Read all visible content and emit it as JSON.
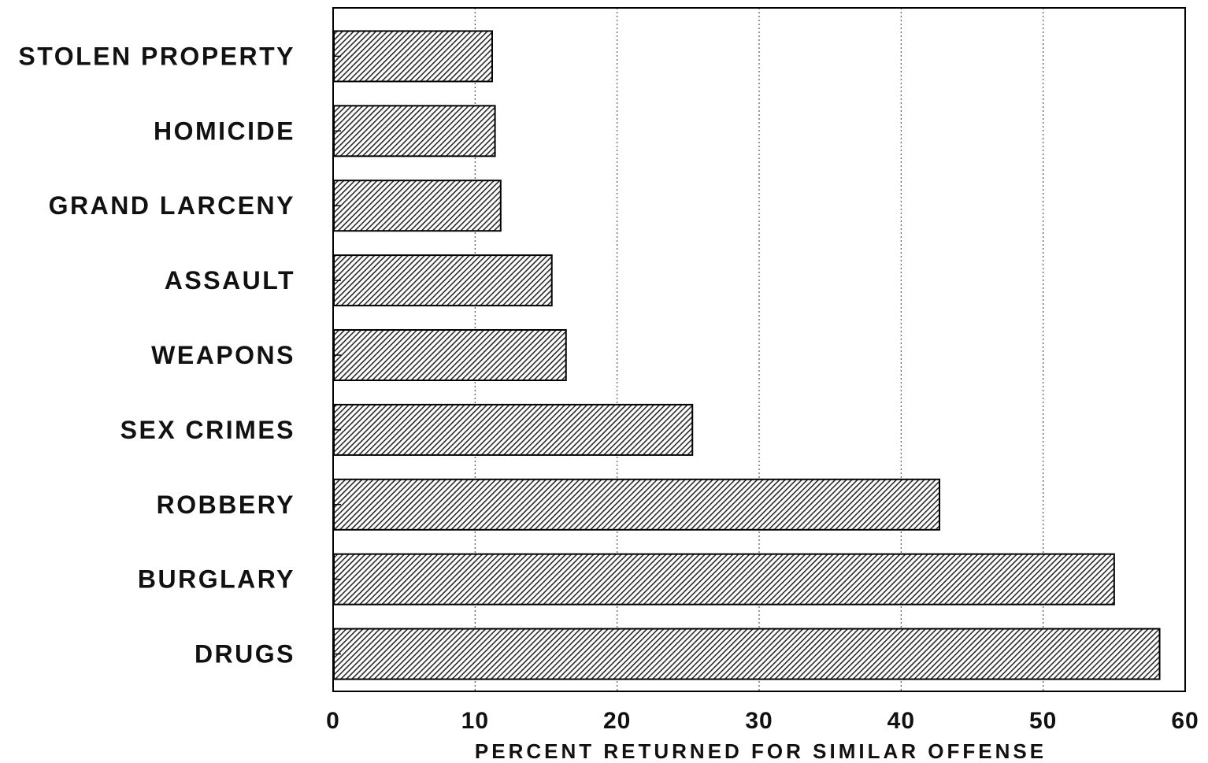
{
  "chart_data": {
    "type": "bar",
    "orientation": "horizontal",
    "categories": [
      "STOLEN PROPERTY",
      "HOMICIDE",
      "GRAND LARCENY",
      "ASSAULT",
      "WEAPONS",
      "SEX CRIMES",
      "ROBBERY",
      "BURGLARY",
      "DRUGS"
    ],
    "values": [
      11.2,
      11.4,
      11.8,
      15.4,
      16.4,
      25.3,
      42.7,
      55.0,
      58.2
    ],
    "title": "",
    "xlabel": "PERCENT RETURNED FOR SIMILAR OFFENSE",
    "ylabel": "",
    "xlim": [
      0,
      60
    ],
    "xticks": [
      0,
      10,
      20,
      30,
      40,
      50,
      60
    ],
    "grid": "vertical dotted lines at x ticks",
    "bar_fill": "diagonal hatch",
    "colors": {
      "bar_hatch": "#2a2a2a",
      "bar_border": "#000000",
      "axis": "#000000",
      "grid": "#555555"
    }
  }
}
